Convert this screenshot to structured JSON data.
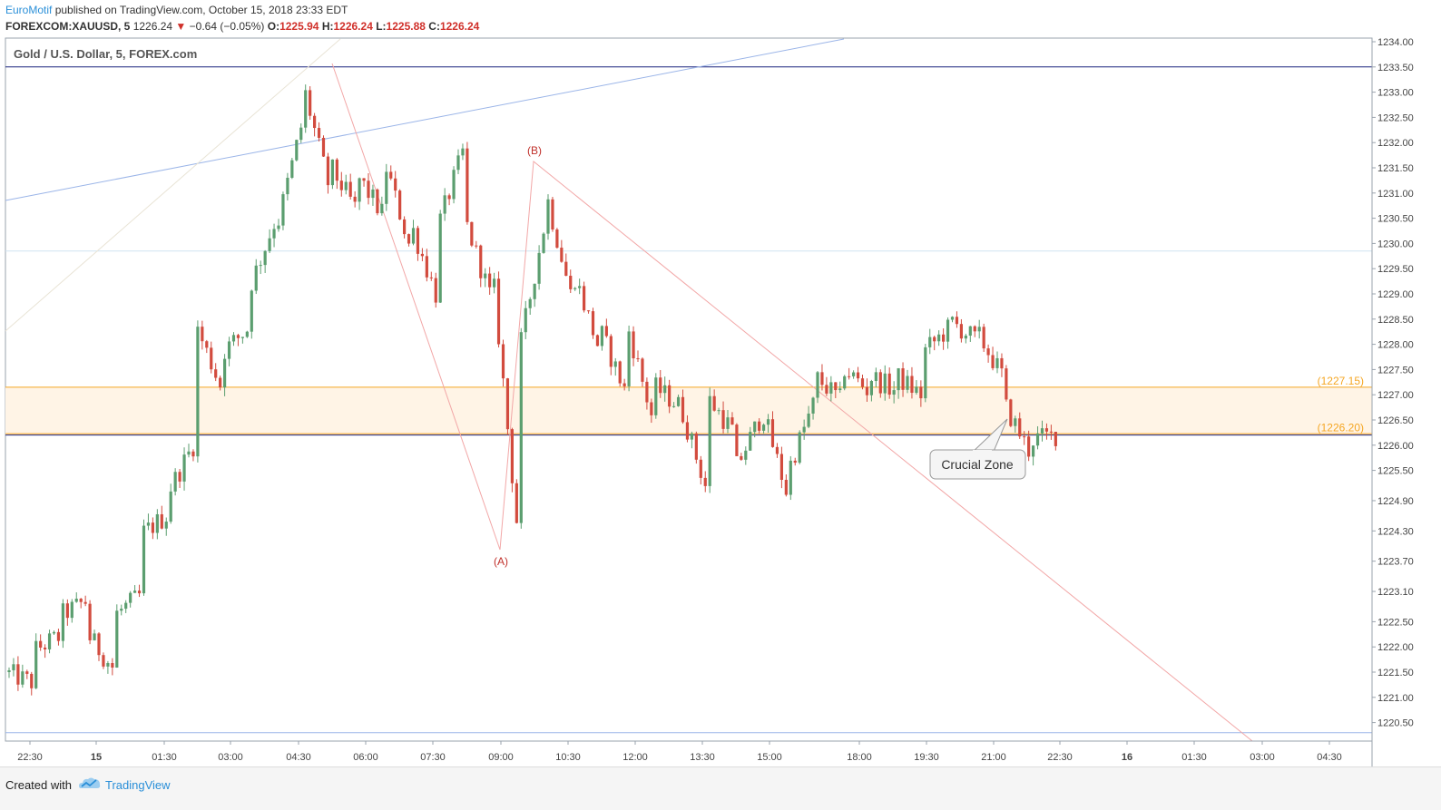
{
  "header": {
    "author": "EuroMotif",
    "published_text": "published on TradingView.com, October 15, 2018 23:33 EDT",
    "symbol": "FOREXCOM:XAUUSD, 5",
    "last": "1226.24",
    "change": "−0.64 (−0.05%)",
    "o_label": "O:",
    "o_value": "1225.94",
    "h_label": "H:",
    "h_value": "1226.24",
    "l_label": "L:",
    "l_value": "1225.88",
    "c_label": "C:",
    "c_value": "1226.24"
  },
  "footer": {
    "created_with": "Created with",
    "brand": "TradingView"
  },
  "colors": {
    "up": "#5b9e6f",
    "down": "#d24b3e",
    "zone_fill": "#fff4e6",
    "zone_line": "#f5a623",
    "wave": "#f2a7a7",
    "trend": "#9bb5e8"
  },
  "chart_data": {
    "type": "candlestick",
    "title": "Gold / U.S. Dollar, 5, FOREX.com",
    "ylim": [
      1220.25,
      1234.0
    ],
    "y_ticks": [
      "1234.00",
      "1233.50",
      "1233.00",
      "1232.50",
      "1232.00",
      "1231.50",
      "1231.00",
      "1230.50",
      "1230.00",
      "1229.50",
      "1229.00",
      "1228.50",
      "1228.00",
      "1227.50",
      "1227.00",
      "1226.50",
      "1226.00",
      "1225.50",
      "1224.90",
      "1224.30",
      "1223.70",
      "1223.10",
      "1222.50",
      "1222.00",
      "1221.50",
      "1221.00",
      "1220.50"
    ],
    "x_ticks": [
      "22:30",
      "15",
      "01:30",
      "03:00",
      "04:30",
      "06:00",
      "07:30",
      "09:00",
      "10:30",
      "12:00",
      "13:30",
      "15:00",
      "18:00",
      "19:30",
      "21:00",
      "22:30",
      "16",
      "01:30",
      "03:00",
      "04:30"
    ],
    "zone": {
      "upper": 1227.15,
      "lower": 1226.2,
      "upper_label": "(1227.15)",
      "lower_label": "(1226.20)"
    },
    "horizontal_lines": [
      1233.5,
      1229.85,
      1226.2,
      1220.3
    ],
    "wave_labels": [
      {
        "label": "(A)",
        "price": 1223.9
      },
      {
        "label": "(B)",
        "price": 1231.8
      }
    ],
    "annotation": "Crucial Zone",
    "path": [
      [
        1221.5,
        1221.3
      ],
      [
        1221.9,
        1222.2
      ],
      [
        1222.6,
        1222.9
      ],
      [
        1222.3,
        1221.6
      ],
      [
        1222.6,
        1223.0
      ],
      [
        1224.2,
        1224.6
      ],
      [
        1225.0,
        1226.0
      ],
      [
        1228.5,
        1227.2
      ],
      [
        1227.8,
        1228.3
      ],
      [
        1229.0,
        1230.4
      ],
      [
        1230.1,
        1232.3
      ],
      [
        1233.3,
        1231.2
      ],
      [
        1231.6,
        1230.7
      ],
      [
        1231.4,
        1230.6
      ],
      [
        1231.8,
        1230.0
      ],
      [
        1230.5,
        1229.0
      ],
      [
        1230.2,
        1231.8
      ],
      [
        1230.6,
        1229.0
      ],
      [
        1230.0,
        1224.5
      ],
      [
        1227.6,
        1230.3
      ],
      [
        1231.2,
        1229.0
      ],
      [
        1229.6,
        1228.0
      ],
      [
        1228.4,
        1227.1
      ],
      [
        1228.6,
        1226.6
      ],
      [
        1227.2,
        1226.8
      ],
      [
        1226.9,
        1225.2
      ],
      [
        1227.0,
        1226.3
      ],
      [
        1225.4,
        1226.5
      ],
      [
        1226.9,
        1225.1
      ],
      [
        1225.4,
        1226.8
      ],
      [
        1227.4,
        1226.9
      ],
      [
        1227.6,
        1227.1
      ],
      [
        1227.4,
        1227.1
      ],
      [
        1227.4,
        1227.0
      ],
      [
        1227.8,
        1228.3
      ],
      [
        1228.5,
        1228.1
      ],
      [
        1228.3,
        1227.4
      ],
      [
        1226.9,
        1225.9
      ],
      [
        1226.1,
        1226.2
      ]
    ]
  }
}
